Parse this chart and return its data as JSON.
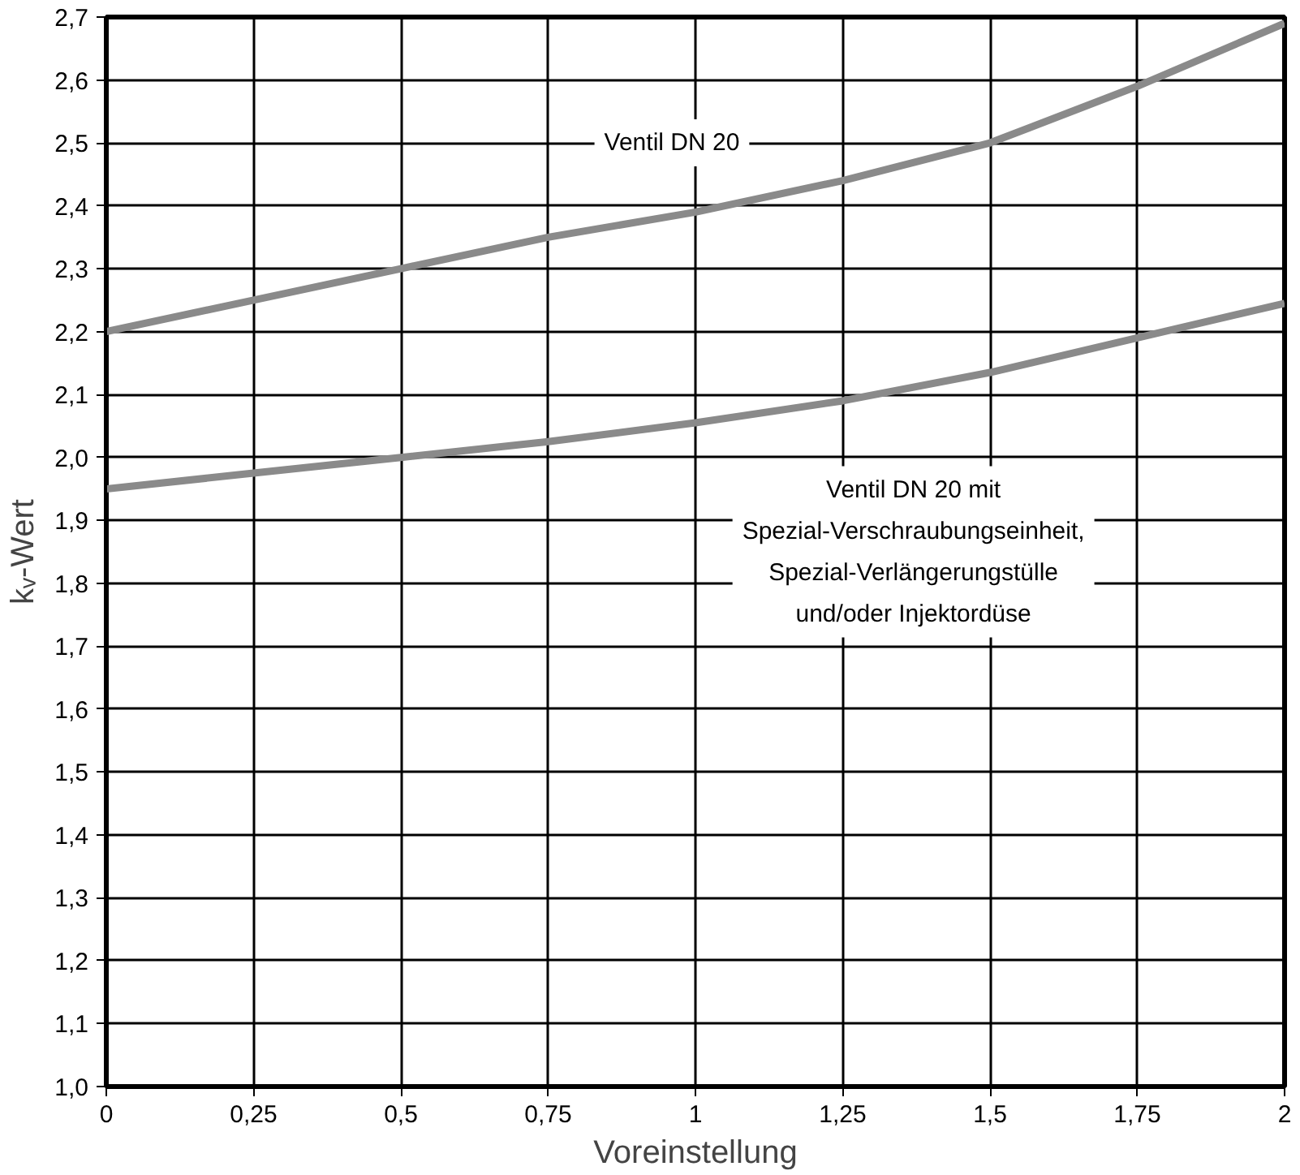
{
  "chart_data": {
    "type": "line",
    "xlabel": "Voreinstellung",
    "ylabel": "kᵥ-Wert",
    "x": [
      0,
      0.25,
      0.5,
      0.75,
      1,
      1.25,
      1.5,
      1.75,
      2
    ],
    "series": [
      {
        "name": "Ventil DN 20",
        "color": "#8a8a8a",
        "values": [
          2.2,
          2.25,
          2.3,
          2.35,
          2.39,
          2.44,
          2.5,
          2.59,
          2.69
        ]
      },
      {
        "name": "Ventil DN 20 mit\nSpezial-Verschraubungseinheit,\nSpezial-Verlängerungstülle\nund/oder Injektordüse",
        "color": "#8a8a8a",
        "values": [
          1.95,
          1.975,
          2.0,
          2.025,
          2.055,
          2.09,
          2.135,
          2.19,
          2.245
        ]
      }
    ],
    "xlim": [
      0,
      2
    ],
    "ylim": [
      1.0,
      2.7
    ],
    "xticks": [
      0,
      {
        "value": 0.25,
        "label": "0,25"
      },
      {
        "value": 0.5,
        "label": "0,5"
      },
      {
        "value": 0.75,
        "label": "0,75"
      },
      1,
      {
        "value": 1.25,
        "label": "1,25"
      },
      {
        "value": 1.5,
        "label": "1,5"
      },
      {
        "value": 1.75,
        "label": "1,75"
      },
      2
    ],
    "yticks": [
      {
        "value": 1.0,
        "label": "1,0"
      },
      {
        "value": 1.1,
        "label": "1,1"
      },
      {
        "value": 1.2,
        "label": "1,2"
      },
      {
        "value": 1.3,
        "label": "1,3"
      },
      {
        "value": 1.4,
        "label": "1,4"
      },
      {
        "value": 1.5,
        "label": "1,5"
      },
      {
        "value": 1.6,
        "label": "1,6"
      },
      {
        "value": 1.7,
        "label": "1,7"
      },
      {
        "value": 1.8,
        "label": "1,8"
      },
      {
        "value": 1.9,
        "label": "1,9"
      },
      {
        "value": 2.0,
        "label": "2,0"
      },
      {
        "value": 2.1,
        "label": "2,1"
      },
      {
        "value": 2.2,
        "label": "2,2"
      },
      {
        "value": 2.3,
        "label": "2,3"
      },
      {
        "value": 2.4,
        "label": "2,4"
      },
      {
        "value": 2.5,
        "label": "2,5"
      },
      {
        "value": 2.6,
        "label": "2,6"
      },
      {
        "value": 2.7,
        "label": "2,7"
      }
    ],
    "grid": true,
    "legend": false,
    "line_style": "solid",
    "marker": "none"
  }
}
